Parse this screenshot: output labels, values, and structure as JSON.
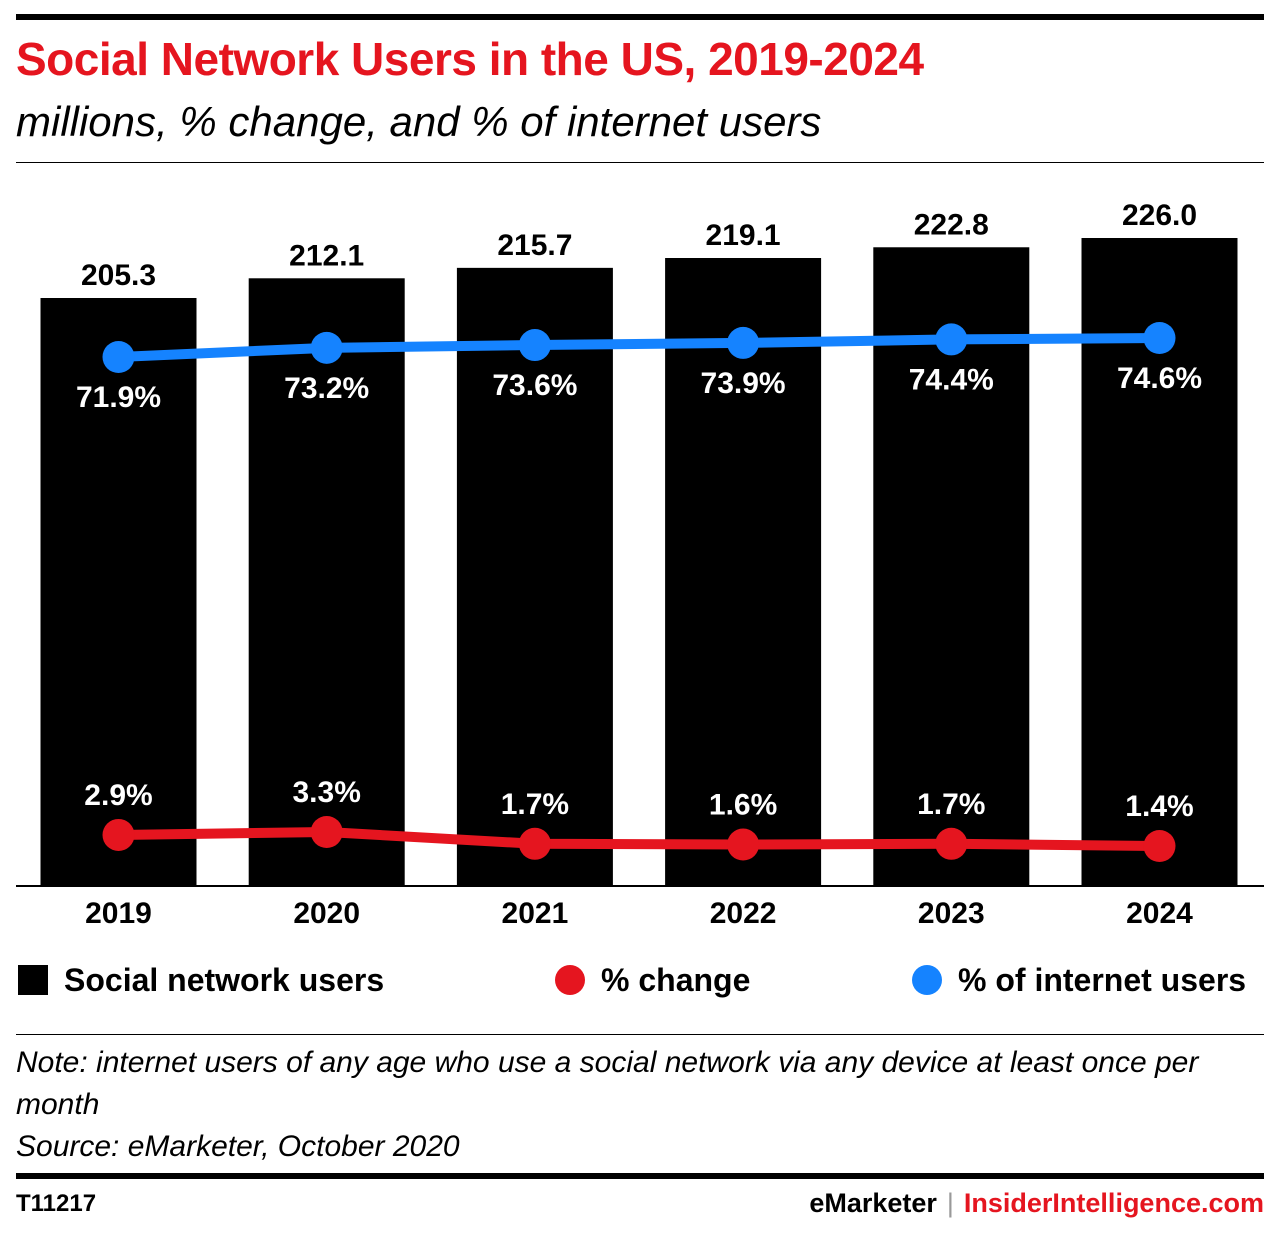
{
  "header": {
    "title": "Social Network Users in the US, 2019-2024",
    "subtitle": "millions, % change, and % of internet users"
  },
  "colors": {
    "bars": "#000000",
    "pct_change": "#e5151f",
    "pct_internet": "#1583ff",
    "title": "#e5151f"
  },
  "chart_data": {
    "type": "bar",
    "categories": [
      "2019",
      "2020",
      "2021",
      "2022",
      "2023",
      "2024"
    ],
    "series": [
      {
        "name": "Social network users",
        "type": "bar",
        "values": [
          205.3,
          212.1,
          215.7,
          219.1,
          222.8,
          226.0
        ],
        "labels": [
          "205.3",
          "212.1",
          "215.7",
          "219.1",
          "222.8",
          "226.0"
        ]
      },
      {
        "name": "% of internet users",
        "type": "line",
        "values": [
          71.9,
          73.2,
          73.6,
          73.9,
          74.4,
          74.6
        ],
        "labels": [
          "71.9%",
          "73.2%",
          "73.6%",
          "73.9%",
          "74.4%",
          "74.6%"
        ]
      },
      {
        "name": "% change",
        "type": "line",
        "values": [
          2.9,
          3.3,
          1.7,
          1.6,
          1.7,
          1.4
        ],
        "labels": [
          "2.9%",
          "3.3%",
          "1.7%",
          "1.6%",
          "1.7%",
          "1.4%"
        ]
      }
    ]
  },
  "legend": {
    "bars_label": "Social network users",
    "change_label": "% change",
    "internet_label": "% of internet users"
  },
  "note": {
    "line1": "Note: internet users of any age who use a social network via any device at least once per month",
    "source": "Source: eMarketer, October 2020"
  },
  "footer": {
    "id": "T11217",
    "brand_a": "eMarketer",
    "separator": "|",
    "brand_b": "InsiderIntelligence.com"
  }
}
